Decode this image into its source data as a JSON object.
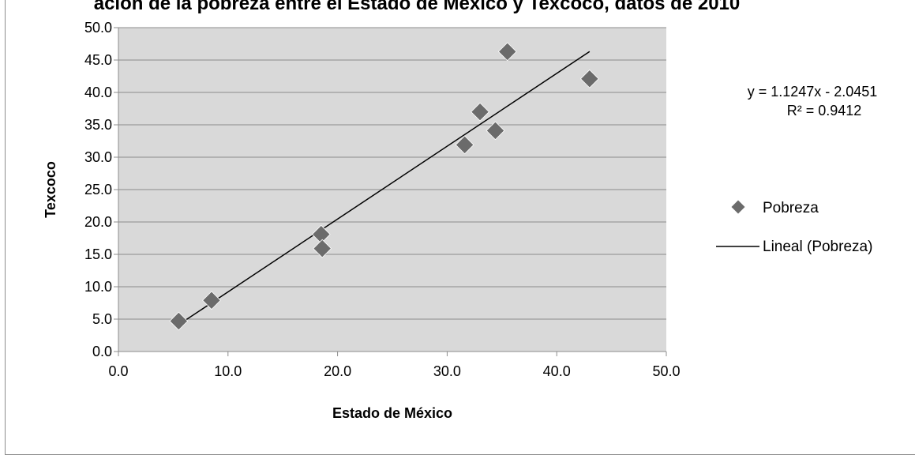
{
  "chart_data": {
    "type": "scatter",
    "title": "ación de la pobreza entre el Estado de México y Texcoco, datos de 2010",
    "xlabel": "Estado de México",
    "ylabel": "Texcoco",
    "xlim": [
      0,
      50
    ],
    "ylim": [
      0,
      50
    ],
    "x_ticks": [
      "0.0",
      "10.0",
      "20.0",
      "30.0",
      "40.0",
      "50.0"
    ],
    "y_ticks": [
      "0.0",
      "5.0",
      "10.0",
      "15.0",
      "20.0",
      "25.0",
      "30.0",
      "35.0",
      "40.0",
      "45.0",
      "50.0"
    ],
    "grid": "horizontal",
    "legend_position": "right",
    "series": [
      {
        "name": "Pobreza",
        "color": "#6b6b6b",
        "marker": "diamond",
        "points": [
          {
            "x": 5.5,
            "y": 4.7
          },
          {
            "x": 8.5,
            "y": 7.9
          },
          {
            "x": 18.5,
            "y": 18.1
          },
          {
            "x": 18.6,
            "y": 15.9
          },
          {
            "x": 31.6,
            "y": 31.9
          },
          {
            "x": 33.0,
            "y": 37.0
          },
          {
            "x": 34.4,
            "y": 34.1
          },
          {
            "x": 35.5,
            "y": 46.3
          },
          {
            "x": 43.0,
            "y": 42.1
          }
        ]
      }
    ],
    "trendline": {
      "name": "Lineal (Pobreza)",
      "type": "linear",
      "slope": 1.1247,
      "intercept": -2.0451,
      "x_range": [
        5.5,
        43.0
      ],
      "color": "#000000",
      "equation": "y = 1.1247x - 2.0451",
      "r_squared": "R² = 0.9412"
    },
    "legend": [
      "Pobreza",
      "Lineal (Pobreza)"
    ]
  }
}
